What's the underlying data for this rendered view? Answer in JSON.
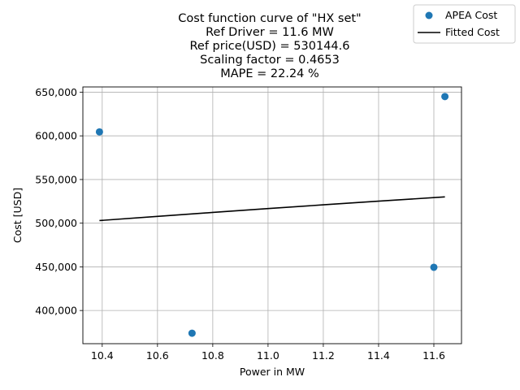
{
  "chart_data": {
    "type": "scatter",
    "title_lines": [
      "Cost function curve of \"HX set\"",
      "Ref Driver = 11.6 MW",
      "Ref price(USD) = 530144.6",
      "Scaling factor = 0.4653",
      "MAPE = 22.24 %"
    ],
    "xlabel": "Power in MW",
    "ylabel": "Cost [USD]",
    "xlim": [
      10.33,
      11.7
    ],
    "ylim": [
      362000,
      656000
    ],
    "xticks": [
      10.4,
      10.6,
      10.8,
      11.0,
      11.2,
      11.4,
      11.6
    ],
    "xtick_labels": [
      "10.4",
      "10.6",
      "10.8",
      "11.0",
      "11.2",
      "11.4",
      "11.6"
    ],
    "yticks": [
      400000,
      450000,
      500000,
      550000,
      600000,
      650000
    ],
    "ytick_labels": [
      "400,000",
      "450,000",
      "500,000",
      "550,000",
      "600,000",
      "650,000"
    ],
    "grid": true,
    "legend_position": "top-right",
    "series": [
      {
        "name": "APEA Cost",
        "kind": "scatter",
        "color": "#1f77b4",
        "x": [
          10.39,
          10.725,
          11.6,
          11.64
        ],
        "y": [
          604500,
          374000,
          449500,
          645000
        ]
      },
      {
        "name": "Fitted Cost",
        "kind": "line",
        "color": "#000000",
        "x": [
          10.39,
          10.6,
          10.8,
          11.0,
          11.2,
          11.4,
          11.64
        ],
        "y": [
          503000,
          507800,
          512300,
          516700,
          521000,
          525200,
          530100
        ]
      }
    ]
  }
}
